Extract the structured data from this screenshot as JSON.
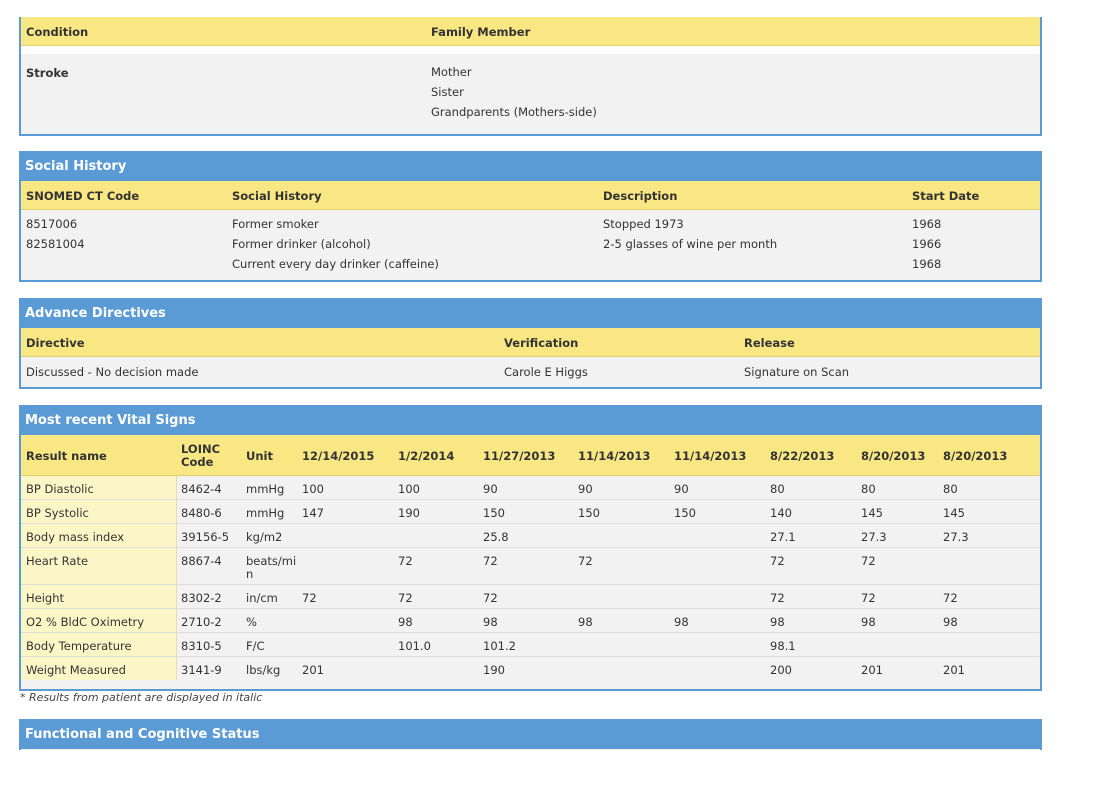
{
  "family_history": {
    "headers": {
      "condition": "Condition",
      "family_member": "Family Member"
    },
    "condition": "Stroke",
    "members": [
      "Mother",
      "Sister",
      "Grandparents (Mothers-side)"
    ]
  },
  "social_history": {
    "title": "Social History",
    "headers": {
      "code": "SNOMED CT Code",
      "history": "Social History",
      "description": "Description",
      "start": "Start Date"
    },
    "rows": [
      {
        "code": "8517006",
        "history": "Former smoker",
        "description": "Stopped 1973",
        "start": "1968"
      },
      {
        "code": "82581004",
        "history": "Former drinker (alcohol)",
        "description": "2-5 glasses of wine per month",
        "start": "1966"
      },
      {
        "code": "",
        "history": "Current every day drinker (caffeine)",
        "description": "",
        "start": "1968"
      }
    ]
  },
  "advance_directives": {
    "title": "Advance Directives",
    "headers": {
      "directive": "Directive",
      "verification": "Verification",
      "release": "Release"
    },
    "row": {
      "directive": "Discussed - No decision made",
      "verification": "Carole E Higgs",
      "release": "Signature on Scan"
    }
  },
  "vital_signs": {
    "title": "Most recent Vital Signs",
    "headers": {
      "name": "Result name",
      "loinc_line1": "LOINC",
      "loinc_line2": "Code",
      "unit": "Unit"
    },
    "dates": [
      "12/14/2015",
      "1/2/2014",
      "11/27/2013",
      "11/14/2013",
      "11/14/2013",
      "8/22/2013",
      "8/20/2013",
      "8/20/2013"
    ],
    "rows": [
      {
        "name": "BP Diastolic",
        "loinc": "8462-4",
        "unit": "mmHg",
        "values": [
          "100",
          "100",
          "90",
          "90",
          "90",
          "80",
          "80",
          "80"
        ]
      },
      {
        "name": "BP Systolic",
        "loinc": "8480-6",
        "unit": "mmHg",
        "values": [
          "147",
          "190",
          "150",
          "150",
          "150",
          "140",
          "145",
          "145"
        ]
      },
      {
        "name": "Body mass index",
        "loinc": "39156-5",
        "unit": "kg/m2",
        "values": [
          "",
          "",
          "25.8",
          "",
          "",
          "27.1",
          "27.3",
          "27.3"
        ]
      },
      {
        "name": "Heart Rate",
        "loinc": "8867-4",
        "unit_line1": "beats/mi",
        "unit_line2": "n",
        "values": [
          "",
          "72",
          "72",
          "72",
          "",
          "72",
          "72",
          ""
        ]
      },
      {
        "name": "Height",
        "loinc": "8302-2",
        "unit": "in/cm",
        "values": [
          "72",
          "72",
          "72",
          "",
          "",
          "72",
          "72",
          "72"
        ]
      },
      {
        "name": "O2 % BldC Oximetry",
        "loinc": "2710-2",
        "unit": "%",
        "values": [
          "",
          "98",
          "98",
          "98",
          "98",
          "98",
          "98",
          "98"
        ]
      },
      {
        "name": "Body Temperature",
        "loinc": "8310-5",
        "unit": "F/C",
        "values": [
          "",
          "101.0",
          "101.2",
          "",
          "",
          "98.1",
          "",
          ""
        ]
      },
      {
        "name": "Weight Measured",
        "loinc": "3141-9",
        "unit": "lbs/kg",
        "values": [
          "201",
          "",
          "190",
          "",
          "",
          "200",
          "201",
          "201"
        ]
      }
    ],
    "note": "* Results from patient are displayed in italic"
  },
  "functional_status": {
    "title": "Functional and Cognitive Status"
  },
  "colors": {
    "header_blue": "#5b9bd5",
    "header_yellow": "#f9e784",
    "row_bg": "#f2f2f2"
  }
}
